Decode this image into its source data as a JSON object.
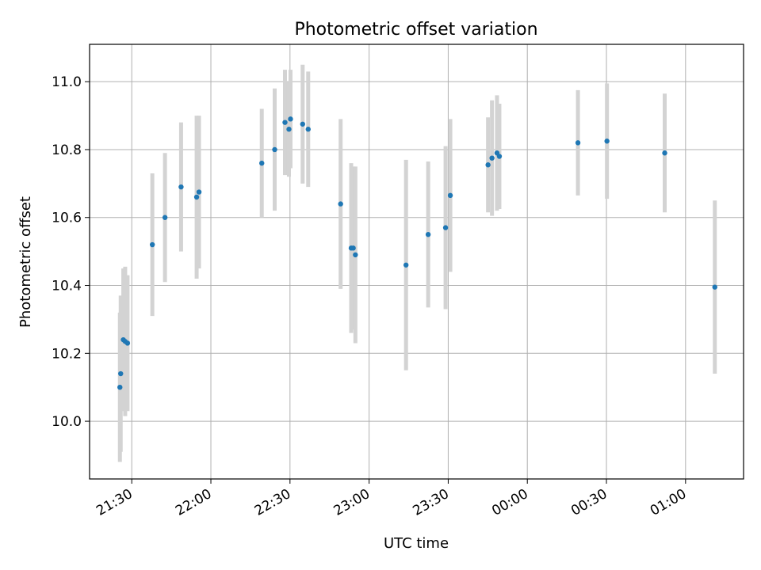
{
  "chart_data": {
    "type": "scatter",
    "title": "Photometric offset variation",
    "xlabel": "UTC time",
    "ylabel": "Photometric offset",
    "grid": true,
    "xlim": [
      "21:14",
      "01:22"
    ],
    "ylim": [
      9.83,
      11.11
    ],
    "x_ticks": [
      "21:30",
      "22:00",
      "22:30",
      "23:00",
      "23:30",
      "00:00",
      "00:30",
      "01:00"
    ],
    "y_ticks": [
      "10.0",
      "10.2",
      "10.4",
      "10.6",
      "10.8",
      "11.0"
    ],
    "marker_color": "#1f77b4",
    "errorbar_color": "#d3d3d3",
    "points": [
      {
        "t": "21:25.5",
        "y": 10.1,
        "err": 0.22
      },
      {
        "t": "21:25.8",
        "y": 10.14,
        "err": 0.23
      },
      {
        "t": "21:26.8",
        "y": 10.24,
        "err": 0.21
      },
      {
        "t": "21:27.5",
        "y": 10.235,
        "err": 0.22
      },
      {
        "t": "21:28.4",
        "y": 10.23,
        "err": 0.2
      },
      {
        "t": "21:37.8",
        "y": 10.52,
        "err": 0.21
      },
      {
        "t": "21:42.6",
        "y": 10.6,
        "err": 0.19
      },
      {
        "t": "21:48.7",
        "y": 10.69,
        "err": 0.19
      },
      {
        "t": "21:54.6",
        "y": 10.66,
        "err": 0.24
      },
      {
        "t": "21:55.5",
        "y": 10.675,
        "err": 0.225
      },
      {
        "t": "22:19.3",
        "y": 10.76,
        "err": 0.16
      },
      {
        "t": "22:24.2",
        "y": 10.8,
        "err": 0.18
      },
      {
        "t": "22:28.1",
        "y": 10.88,
        "err": 0.155
      },
      {
        "t": "22:29.6",
        "y": 10.86,
        "err": 0.14
      },
      {
        "t": "22:30.2",
        "y": 10.89,
        "err": 0.145
      },
      {
        "t": "22:34.8",
        "y": 10.875,
        "err": 0.175
      },
      {
        "t": "22:36.9",
        "y": 10.86,
        "err": 0.17
      },
      {
        "t": "22:49.2",
        "y": 10.64,
        "err": 0.25
      },
      {
        "t": "22:53.2",
        "y": 10.51,
        "err": 0.25
      },
      {
        "t": "22:54.0",
        "y": 10.51,
        "err": 0.24
      },
      {
        "t": "22:54.8",
        "y": 10.49,
        "err": 0.26
      },
      {
        "t": "23:14.0",
        "y": 10.46,
        "err": 0.31
      },
      {
        "t": "23:22.4",
        "y": 10.55,
        "err": 0.215
      },
      {
        "t": "23:29.0",
        "y": 10.57,
        "err": 0.24
      },
      {
        "t": "23:30.8",
        "y": 10.665,
        "err": 0.225
      },
      {
        "t": "23:45.1",
        "y": 10.755,
        "err": 0.14
      },
      {
        "t": "23:46.6",
        "y": 10.775,
        "err": 0.17
      },
      {
        "t": "23:48.5",
        "y": 10.79,
        "err": 0.17
      },
      {
        "t": "23:49.4",
        "y": 10.78,
        "err": 0.155
      },
      {
        "t": "00:19.2",
        "y": 10.82,
        "err": 0.155
      },
      {
        "t": "00:30.2",
        "y": 10.825,
        "err": 0.17
      },
      {
        "t": "00:52.1",
        "y": 10.79,
        "err": 0.175
      },
      {
        "t": "01:11.1",
        "y": 10.395,
        "err": 0.255
      }
    ]
  }
}
